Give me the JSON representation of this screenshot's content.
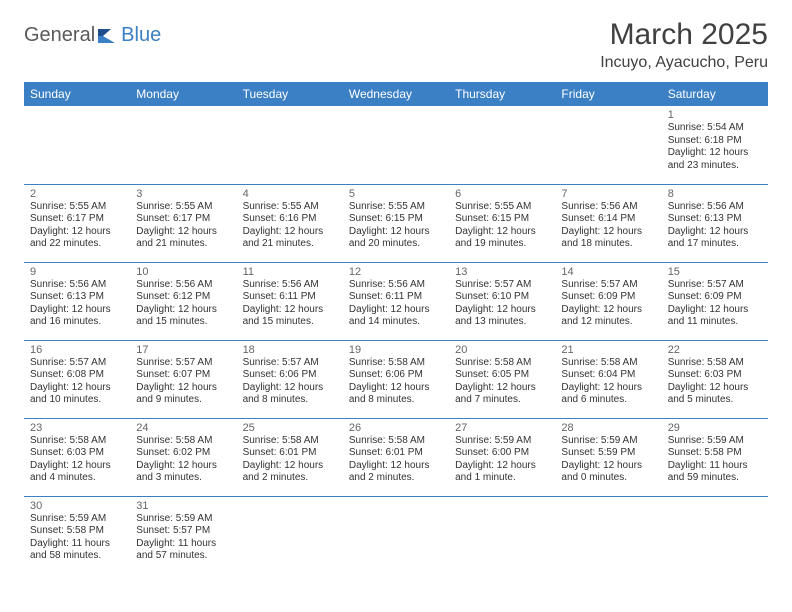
{
  "logo": {
    "general": "General",
    "blue": "Blue"
  },
  "title": "March 2025",
  "location": "Incuyo, Ayacucho, Peru",
  "colors": {
    "header_bg": "#3b7fc4",
    "header_text": "#ffffff",
    "border": "#3b7fc4",
    "text": "#333333",
    "daynum": "#666666"
  },
  "day_headers": [
    "Sunday",
    "Monday",
    "Tuesday",
    "Wednesday",
    "Thursday",
    "Friday",
    "Saturday"
  ],
  "weeks": [
    [
      null,
      null,
      null,
      null,
      null,
      null,
      {
        "n": "1",
        "sunrise": "Sunrise: 5:54 AM",
        "sunset": "Sunset: 6:18 PM",
        "dl1": "Daylight: 12 hours",
        "dl2": "and 23 minutes."
      }
    ],
    [
      {
        "n": "2",
        "sunrise": "Sunrise: 5:55 AM",
        "sunset": "Sunset: 6:17 PM",
        "dl1": "Daylight: 12 hours",
        "dl2": "and 22 minutes."
      },
      {
        "n": "3",
        "sunrise": "Sunrise: 5:55 AM",
        "sunset": "Sunset: 6:17 PM",
        "dl1": "Daylight: 12 hours",
        "dl2": "and 21 minutes."
      },
      {
        "n": "4",
        "sunrise": "Sunrise: 5:55 AM",
        "sunset": "Sunset: 6:16 PM",
        "dl1": "Daylight: 12 hours",
        "dl2": "and 21 minutes."
      },
      {
        "n": "5",
        "sunrise": "Sunrise: 5:55 AM",
        "sunset": "Sunset: 6:15 PM",
        "dl1": "Daylight: 12 hours",
        "dl2": "and 20 minutes."
      },
      {
        "n": "6",
        "sunrise": "Sunrise: 5:55 AM",
        "sunset": "Sunset: 6:15 PM",
        "dl1": "Daylight: 12 hours",
        "dl2": "and 19 minutes."
      },
      {
        "n": "7",
        "sunrise": "Sunrise: 5:56 AM",
        "sunset": "Sunset: 6:14 PM",
        "dl1": "Daylight: 12 hours",
        "dl2": "and 18 minutes."
      },
      {
        "n": "8",
        "sunrise": "Sunrise: 5:56 AM",
        "sunset": "Sunset: 6:13 PM",
        "dl1": "Daylight: 12 hours",
        "dl2": "and 17 minutes."
      }
    ],
    [
      {
        "n": "9",
        "sunrise": "Sunrise: 5:56 AM",
        "sunset": "Sunset: 6:13 PM",
        "dl1": "Daylight: 12 hours",
        "dl2": "and 16 minutes."
      },
      {
        "n": "10",
        "sunrise": "Sunrise: 5:56 AM",
        "sunset": "Sunset: 6:12 PM",
        "dl1": "Daylight: 12 hours",
        "dl2": "and 15 minutes."
      },
      {
        "n": "11",
        "sunrise": "Sunrise: 5:56 AM",
        "sunset": "Sunset: 6:11 PM",
        "dl1": "Daylight: 12 hours",
        "dl2": "and 15 minutes."
      },
      {
        "n": "12",
        "sunrise": "Sunrise: 5:56 AM",
        "sunset": "Sunset: 6:11 PM",
        "dl1": "Daylight: 12 hours",
        "dl2": "and 14 minutes."
      },
      {
        "n": "13",
        "sunrise": "Sunrise: 5:57 AM",
        "sunset": "Sunset: 6:10 PM",
        "dl1": "Daylight: 12 hours",
        "dl2": "and 13 minutes."
      },
      {
        "n": "14",
        "sunrise": "Sunrise: 5:57 AM",
        "sunset": "Sunset: 6:09 PM",
        "dl1": "Daylight: 12 hours",
        "dl2": "and 12 minutes."
      },
      {
        "n": "15",
        "sunrise": "Sunrise: 5:57 AM",
        "sunset": "Sunset: 6:09 PM",
        "dl1": "Daylight: 12 hours",
        "dl2": "and 11 minutes."
      }
    ],
    [
      {
        "n": "16",
        "sunrise": "Sunrise: 5:57 AM",
        "sunset": "Sunset: 6:08 PM",
        "dl1": "Daylight: 12 hours",
        "dl2": "and 10 minutes."
      },
      {
        "n": "17",
        "sunrise": "Sunrise: 5:57 AM",
        "sunset": "Sunset: 6:07 PM",
        "dl1": "Daylight: 12 hours",
        "dl2": "and 9 minutes."
      },
      {
        "n": "18",
        "sunrise": "Sunrise: 5:57 AM",
        "sunset": "Sunset: 6:06 PM",
        "dl1": "Daylight: 12 hours",
        "dl2": "and 8 minutes."
      },
      {
        "n": "19",
        "sunrise": "Sunrise: 5:58 AM",
        "sunset": "Sunset: 6:06 PM",
        "dl1": "Daylight: 12 hours",
        "dl2": "and 8 minutes."
      },
      {
        "n": "20",
        "sunrise": "Sunrise: 5:58 AM",
        "sunset": "Sunset: 6:05 PM",
        "dl1": "Daylight: 12 hours",
        "dl2": "and 7 minutes."
      },
      {
        "n": "21",
        "sunrise": "Sunrise: 5:58 AM",
        "sunset": "Sunset: 6:04 PM",
        "dl1": "Daylight: 12 hours",
        "dl2": "and 6 minutes."
      },
      {
        "n": "22",
        "sunrise": "Sunrise: 5:58 AM",
        "sunset": "Sunset: 6:03 PM",
        "dl1": "Daylight: 12 hours",
        "dl2": "and 5 minutes."
      }
    ],
    [
      {
        "n": "23",
        "sunrise": "Sunrise: 5:58 AM",
        "sunset": "Sunset: 6:03 PM",
        "dl1": "Daylight: 12 hours",
        "dl2": "and 4 minutes."
      },
      {
        "n": "24",
        "sunrise": "Sunrise: 5:58 AM",
        "sunset": "Sunset: 6:02 PM",
        "dl1": "Daylight: 12 hours",
        "dl2": "and 3 minutes."
      },
      {
        "n": "25",
        "sunrise": "Sunrise: 5:58 AM",
        "sunset": "Sunset: 6:01 PM",
        "dl1": "Daylight: 12 hours",
        "dl2": "and 2 minutes."
      },
      {
        "n": "26",
        "sunrise": "Sunrise: 5:58 AM",
        "sunset": "Sunset: 6:01 PM",
        "dl1": "Daylight: 12 hours",
        "dl2": "and 2 minutes."
      },
      {
        "n": "27",
        "sunrise": "Sunrise: 5:59 AM",
        "sunset": "Sunset: 6:00 PM",
        "dl1": "Daylight: 12 hours",
        "dl2": "and 1 minute."
      },
      {
        "n": "28",
        "sunrise": "Sunrise: 5:59 AM",
        "sunset": "Sunset: 5:59 PM",
        "dl1": "Daylight: 12 hours",
        "dl2": "and 0 minutes."
      },
      {
        "n": "29",
        "sunrise": "Sunrise: 5:59 AM",
        "sunset": "Sunset: 5:58 PM",
        "dl1": "Daylight: 11 hours",
        "dl2": "and 59 minutes."
      }
    ],
    [
      {
        "n": "30",
        "sunrise": "Sunrise: 5:59 AM",
        "sunset": "Sunset: 5:58 PM",
        "dl1": "Daylight: 11 hours",
        "dl2": "and 58 minutes."
      },
      {
        "n": "31",
        "sunrise": "Sunrise: 5:59 AM",
        "sunset": "Sunset: 5:57 PM",
        "dl1": "Daylight: 11 hours",
        "dl2": "and 57 minutes."
      },
      null,
      null,
      null,
      null,
      null
    ]
  ]
}
